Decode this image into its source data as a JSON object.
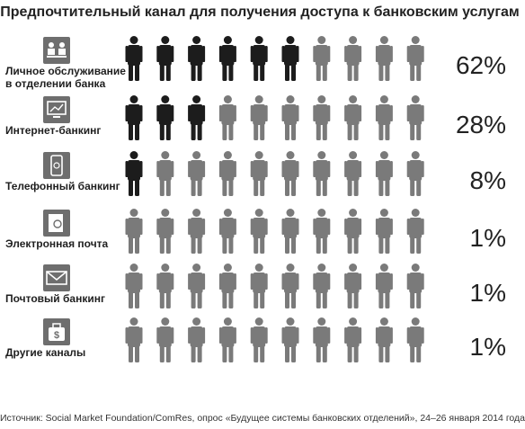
{
  "chart_data": {
    "type": "pictogram",
    "title": "Предпочтительный канал для получения доступа к банковским услугам",
    "icons_per_row": 10,
    "channels": [
      {
        "label_lines": [
          "Личное обслуживание",
          "в отделении банка"
        ],
        "value": 62,
        "value_label": "62%",
        "dark_icons": 6,
        "icon": "person-at-desk-icon"
      },
      {
        "label_lines": [
          "Интернет-банкинг"
        ],
        "value": 28,
        "value_label": "28%",
        "dark_icons": 3,
        "icon": "computer-screen-icon"
      },
      {
        "label_lines": [
          "Телефонный банкинг"
        ],
        "value": 8,
        "value_label": "8%",
        "dark_icons": 1,
        "icon": "mobile-phone-icon"
      },
      {
        "label_lines": [
          "Электронная почта"
        ],
        "value": 1,
        "value_label": "1%",
        "dark_icons": 0,
        "icon": "email-icon"
      },
      {
        "label_lines": [
          "Почтовый банкинг"
        ],
        "value": 1,
        "value_label": "1%",
        "dark_icons": 0,
        "icon": "envelope-icon"
      },
      {
        "label_lines": [
          "Другие каналы"
        ],
        "value": 1,
        "value_label": "1%",
        "dark_icons": 0,
        "icon": "money-bag-icon"
      }
    ],
    "colors": {
      "dark": "#1c1c1c",
      "light": "#7a7a7a",
      "icon_box": "#6e6e6e"
    },
    "source": "Источник: Social Market Foundation/ComRes, опрос «Будущее системы банковских отделений», 24–26 января 2014 года"
  }
}
